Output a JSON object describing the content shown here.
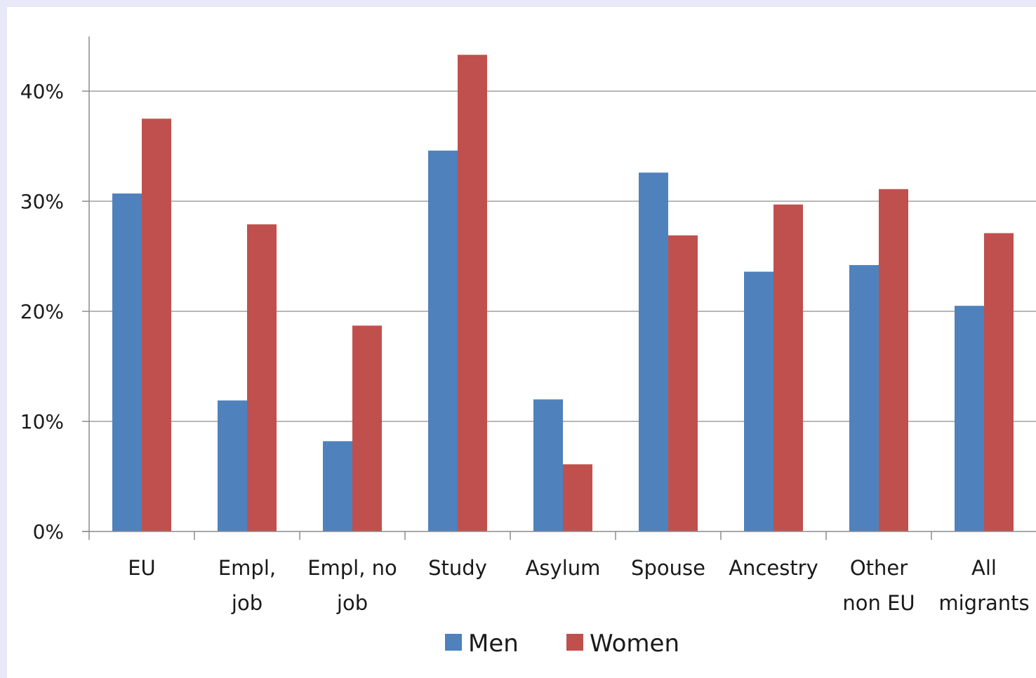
{
  "chart_data": {
    "type": "bar",
    "categories": [
      [
        "EU"
      ],
      [
        "Empl,",
        "job"
      ],
      [
        "Empl, no",
        "job"
      ],
      [
        "Study"
      ],
      [
        "Asylum"
      ],
      [
        "Spouse"
      ],
      [
        "Ancestry"
      ],
      [
        "Other",
        "non EU"
      ],
      [
        "All",
        "migrants"
      ]
    ],
    "series": [
      {
        "name": "Men",
        "color": "#4f81bd",
        "values": [
          30.7,
          11.9,
          8.2,
          34.6,
          12.0,
          32.6,
          23.6,
          24.2,
          20.5
        ]
      },
      {
        "name": "Women",
        "color": "#c0504d",
        "values": [
          37.5,
          27.9,
          18.7,
          43.3,
          6.1,
          26.9,
          29.7,
          31.1,
          27.1
        ]
      }
    ],
    "yticks": [
      "0%",
      "10%",
      "20%",
      "30%",
      "40%"
    ],
    "ytick_values": [
      0,
      10,
      20,
      30,
      40
    ],
    "ylim": [
      0,
      45
    ],
    "grid": true,
    "legend_position": "bottom"
  }
}
